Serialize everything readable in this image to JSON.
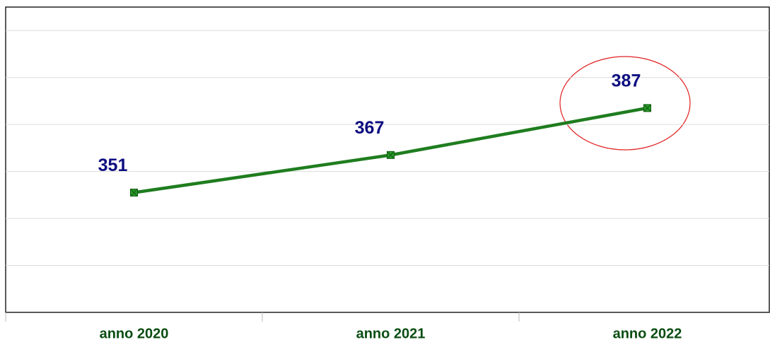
{
  "chart_data": {
    "type": "line",
    "categories": [
      "anno 2020",
      "anno 2021",
      "anno 2022"
    ],
    "series": [
      {
        "color": "#1f7d1f",
        "values": [
          351,
          367,
          387
        ]
      }
    ],
    "ylim": [
      300,
      430
    ],
    "yticks": [
      300,
      320,
      340,
      360,
      380,
      400,
      420
    ],
    "grid": true
  }
}
